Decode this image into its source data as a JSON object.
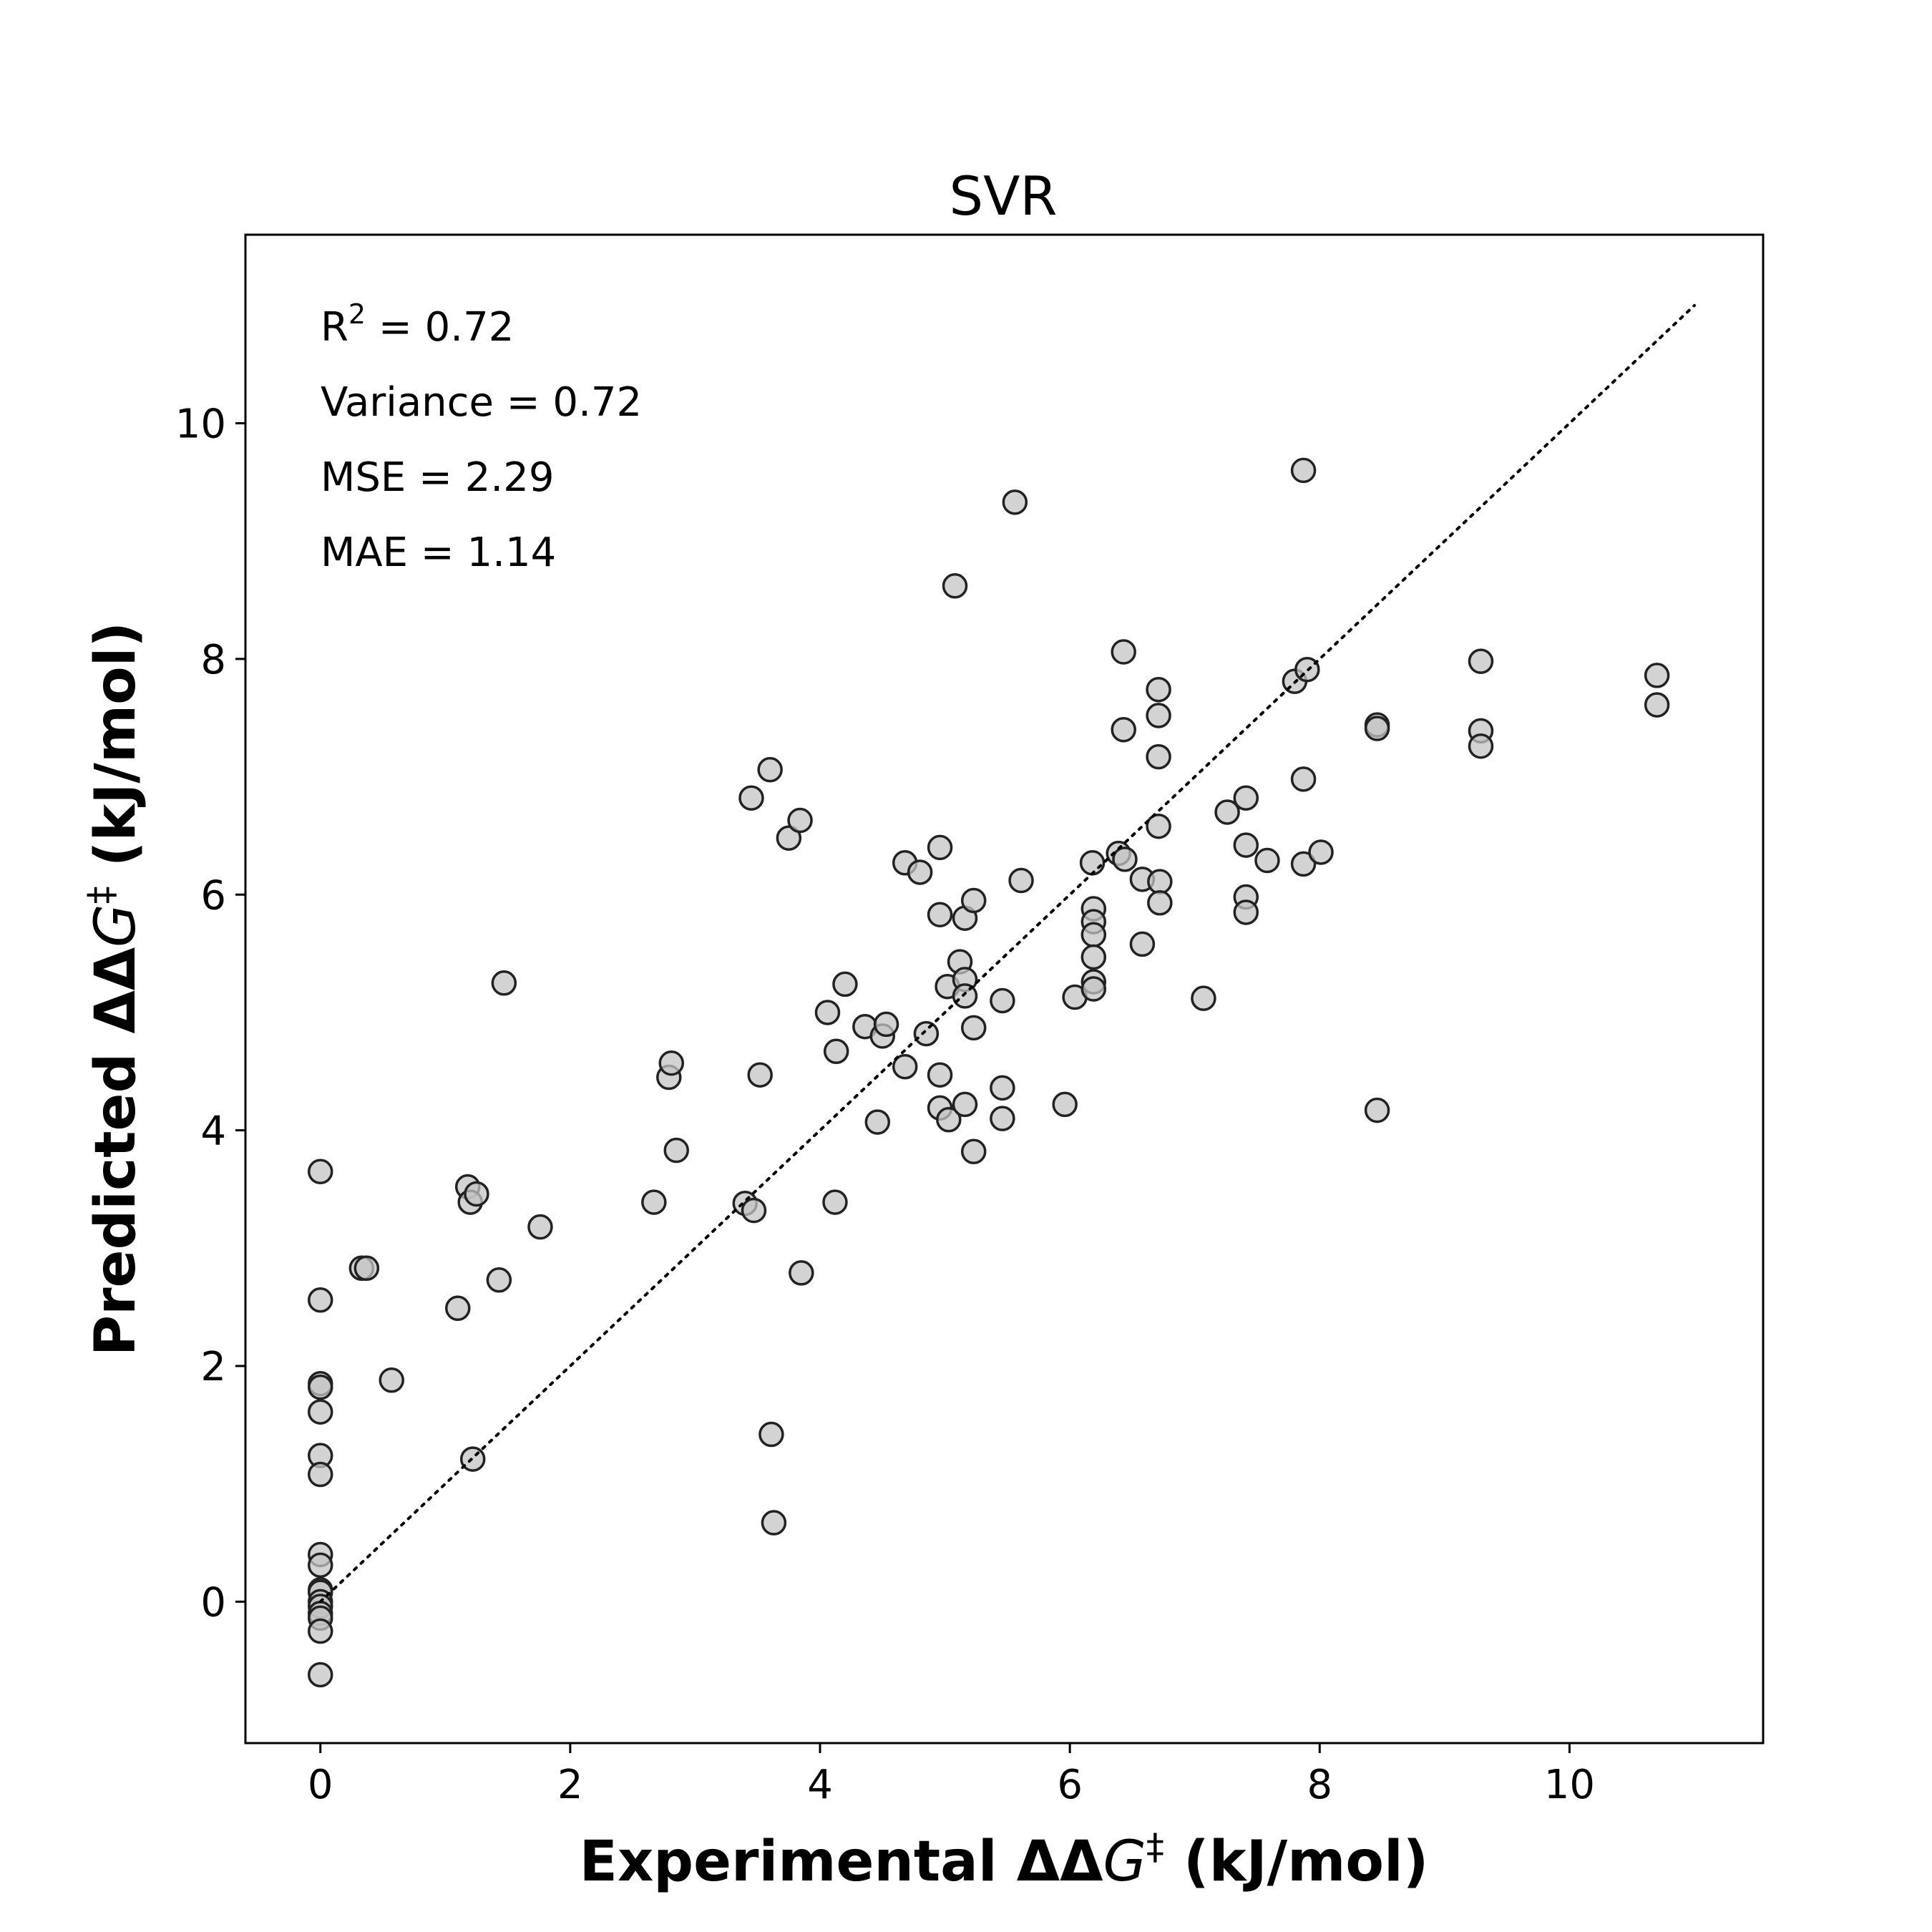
{
  "chart_data": {
    "type": "scatter",
    "title": "SVR",
    "xlabel": {
      "prefix": "Experimental ΔΔ",
      "var": "G",
      "sup": "‡",
      "suffix": " (kJ/mol)"
    },
    "ylabel": {
      "prefix": "Predicted ΔΔ",
      "var": "G",
      "sup": "‡",
      "suffix": " (kJ/mol)"
    },
    "xlim": [
      -0.6,
      11.55
    ],
    "ylim": [
      -1.2,
      11.6
    ],
    "xticks": [
      0,
      2,
      4,
      6,
      8,
      10
    ],
    "yticks": [
      0,
      2,
      4,
      6,
      8,
      10
    ],
    "xtick_labels": [
      "0",
      "2",
      "4",
      "6",
      "8",
      "10"
    ],
    "ytick_labels": [
      "0",
      "2",
      "4",
      "6",
      "8",
      "10"
    ],
    "grid": false,
    "reference_line": {
      "style": "dotted",
      "from": [
        0,
        0
      ],
      "to": [
        11,
        11
      ]
    },
    "stats": [
      {
        "label": "R",
        "sup": "2",
        "rest": " = 0.72"
      },
      {
        "label": "Variance = 0.72",
        "sup": "",
        "rest": ""
      },
      {
        "label": "MSE = 2.29",
        "sup": "",
        "rest": ""
      },
      {
        "label": "MAE = 1.14",
        "sup": "",
        "rest": ""
      }
    ],
    "points": [
      [
        0,
        3.65
      ],
      [
        0,
        2.56
      ],
      [
        0,
        1.85
      ],
      [
        0,
        1.82
      ],
      [
        0,
        1.61
      ],
      [
        0,
        1.24
      ],
      [
        0,
        1.08
      ],
      [
        0,
        0.4
      ],
      [
        0,
        0.31
      ],
      [
        0,
        0.1
      ],
      [
        0,
        0.08
      ],
      [
        0,
        0.0
      ],
      [
        0,
        -0.04
      ],
      [
        0,
        -0.1
      ],
      [
        0,
        -0.14
      ],
      [
        0,
        -0.25
      ],
      [
        0,
        -0.62
      ],
      [
        0.33,
        2.83
      ],
      [
        0.37,
        2.83
      ],
      [
        0.57,
        1.88
      ],
      [
        1.1,
        2.49
      ],
      [
        1.18,
        3.52
      ],
      [
        1.2,
        3.39
      ],
      [
        1.25,
        3.46
      ],
      [
        1.22,
        1.21
      ],
      [
        1.43,
        2.73
      ],
      [
        1.47,
        5.25
      ],
      [
        1.76,
        3.18
      ],
      [
        2.67,
        3.39
      ],
      [
        2.79,
        4.45
      ],
      [
        2.81,
        4.57
      ],
      [
        2.85,
        3.83
      ],
      [
        3.4,
        3.38
      ],
      [
        3.45,
        6.82
      ],
      [
        3.47,
        3.32
      ],
      [
        3.52,
        4.47
      ],
      [
        3.6,
        7.06
      ],
      [
        3.61,
        1.42
      ],
      [
        3.63,
        0.67
      ],
      [
        3.75,
        6.48
      ],
      [
        3.84,
        6.63
      ],
      [
        3.85,
        2.79
      ],
      [
        4.06,
        5.0
      ],
      [
        4.12,
        3.39
      ],
      [
        4.13,
        4.67
      ],
      [
        4.2,
        5.24
      ],
      [
        4.36,
        4.88
      ],
      [
        4.46,
        4.07
      ],
      [
        4.5,
        4.8
      ],
      [
        4.53,
        4.9
      ],
      [
        4.68,
        4.54
      ],
      [
        4.68,
        6.27
      ],
      [
        4.8,
        6.19
      ],
      [
        4.85,
        4.82
      ],
      [
        4.96,
        6.4
      ],
      [
        4.96,
        5.83
      ],
      [
        4.96,
        4.47
      ],
      [
        4.96,
        4.19
      ],
      [
        5.02,
        5.22
      ],
      [
        5.03,
        4.09
      ],
      [
        5.08,
        8.62
      ],
      [
        5.12,
        5.43
      ],
      [
        5.16,
        5.8
      ],
      [
        5.16,
        5.28
      ],
      [
        5.16,
        5.14
      ],
      [
        5.16,
        4.22
      ],
      [
        5.23,
        5.95
      ],
      [
        5.23,
        4.87
      ],
      [
        5.23,
        3.82
      ],
      [
        5.46,
        5.1
      ],
      [
        5.46,
        4.36
      ],
      [
        5.46,
        4.1
      ],
      [
        5.56,
        9.33
      ],
      [
        5.61,
        6.12
      ],
      [
        5.96,
        4.22
      ],
      [
        6.04,
        5.13
      ],
      [
        6.18,
        6.27
      ],
      [
        6.19,
        5.88
      ],
      [
        6.19,
        5.77
      ],
      [
        6.19,
        5.66
      ],
      [
        6.19,
        5.47
      ],
      [
        6.19,
        5.26
      ],
      [
        6.19,
        5.2
      ],
      [
        6.39,
        6.35
      ],
      [
        6.43,
        8.06
      ],
      [
        6.43,
        7.4
      ],
      [
        6.44,
        6.3
      ],
      [
        6.58,
        6.13
      ],
      [
        6.58,
        5.58
      ],
      [
        6.71,
        7.74
      ],
      [
        6.71,
        7.52
      ],
      [
        6.71,
        7.17
      ],
      [
        6.71,
        6.58
      ],
      [
        6.72,
        6.11
      ],
      [
        6.72,
        5.93
      ],
      [
        7.07,
        5.12
      ],
      [
        7.26,
        6.7
      ],
      [
        7.41,
        6.82
      ],
      [
        7.41,
        6.42
      ],
      [
        7.41,
        5.98
      ],
      [
        7.41,
        5.85
      ],
      [
        7.58,
        6.29
      ],
      [
        7.8,
        7.81
      ],
      [
        7.87,
        9.6
      ],
      [
        7.87,
        6.98
      ],
      [
        7.87,
        6.26
      ],
      [
        7.9,
        7.91
      ],
      [
        8.01,
        6.36
      ],
      [
        8.46,
        7.44
      ],
      [
        8.46,
        7.41
      ],
      [
        8.46,
        4.17
      ],
      [
        9.29,
        7.98
      ],
      [
        9.29,
        7.39
      ],
      [
        9.29,
        7.26
      ],
      [
        10.7,
        7.86
      ],
      [
        10.7,
        7.61
      ]
    ]
  }
}
